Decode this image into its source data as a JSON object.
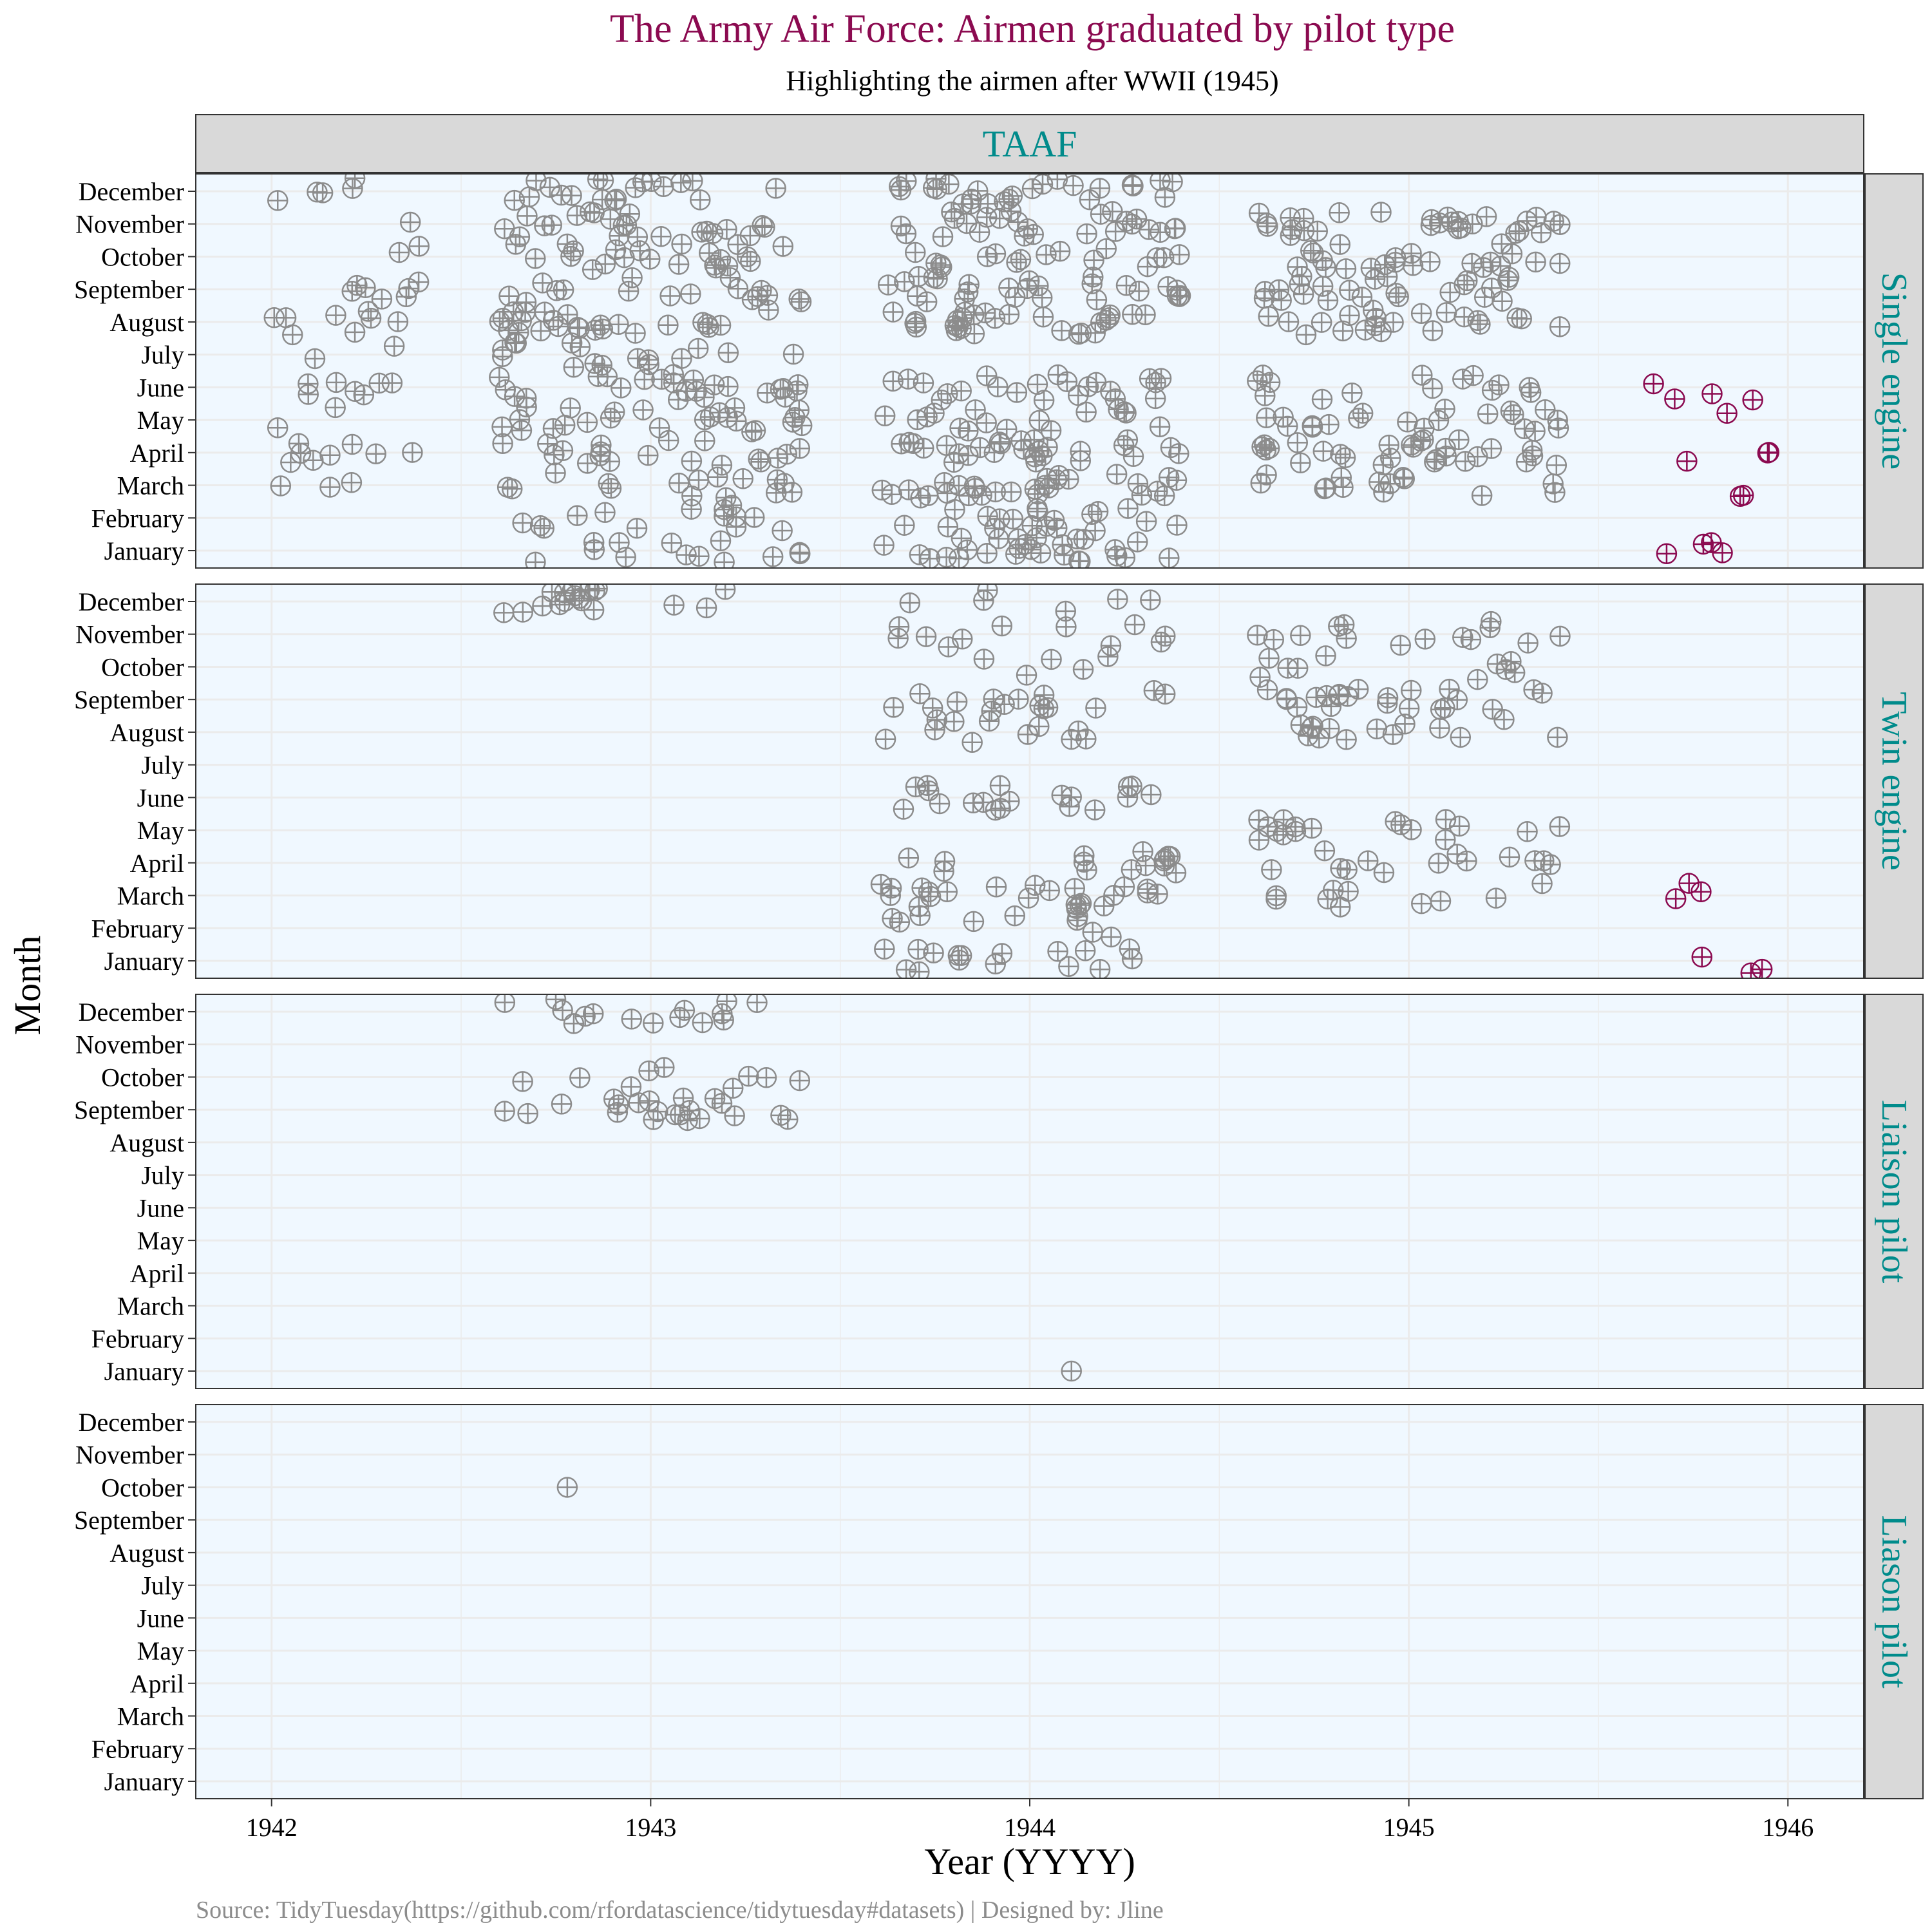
{
  "title": "The Army Air Force: Airmen graduated by pilot type",
  "subtitle": "Highlighting the airmen after WWII (1945)",
  "caption": "Source: TidyTuesday(https://github.com/rfordatascience/tidytuesday#datasets) | Designed by: Jline",
  "colors": {
    "title": "#8b0a50",
    "strip_text": "#008b8b",
    "panel_bg": "#f0f8ff",
    "strip_bg": "#d9d9d9",
    "grid": "#ebebeb",
    "point_default": "#8c8c8c",
    "point_highlight": "#8b0a50",
    "caption": "#8c8c8c"
  },
  "chart_data": {
    "type": "scatter",
    "marker": "circle-plus (jittered)",
    "xlabel": "Year (YYYY)",
    "ylabel": "Month",
    "xlim": [
      1941.8,
      1946.2
    ],
    "x_ticks": [
      "1942",
      "1943",
      "1944",
      "1945",
      "1946"
    ],
    "y_ticks": [
      "January",
      "February",
      "March",
      "April",
      "May",
      "June",
      "July",
      "August",
      "September",
      "October",
      "November",
      "December"
    ],
    "facet_column": "TAAF",
    "highlight_rule": "year > 1945",
    "grid": true,
    "panels": [
      {
        "label": "Single engine",
        "clusters": [
          {
            "x": [
              1942.0,
              1942.4
            ],
            "months": [
              3,
              4,
              5,
              6,
              7,
              8,
              9,
              10,
              11,
              12
            ],
            "n": 45
          },
          {
            "x": [
              1942.6,
              1943.4
            ],
            "months": [
              1,
              2,
              3,
              4,
              5,
              6,
              7,
              8,
              9,
              10,
              11,
              12
            ],
            "n": 230
          },
          {
            "x": [
              1943.6,
              1944.4
            ],
            "months": [
              1,
              2,
              3,
              4,
              5,
              6,
              8,
              9,
              10,
              11,
              12
            ],
            "n": 260
          },
          {
            "x": [
              1944.6,
              1945.4
            ],
            "months": [
              3,
              4,
              5,
              6,
              8,
              9,
              10,
              11
            ],
            "n": 170
          },
          {
            "x": [
              1945.6,
              1945.95
            ],
            "months": [
              1,
              2,
              3,
              4,
              5,
              6
            ],
            "n": 14
          }
        ]
      },
      {
        "label": "Twin engine",
        "clusters": [
          {
            "x": [
              1942.6,
              1943.2
            ],
            "months": [
              12
            ],
            "n": 18
          },
          {
            "x": [
              1943.6,
              1944.4
            ],
            "months": [
              1,
              2,
              3,
              4,
              6,
              8,
              9,
              10,
              11,
              12
            ],
            "n": 130
          },
          {
            "x": [
              1944.6,
              1945.4
            ],
            "months": [
              3,
              4,
              5,
              8,
              9,
              10,
              11
            ],
            "n": 100
          },
          {
            "x": [
              1945.7,
              1945.95
            ],
            "months": [
              1,
              3,
              5
            ],
            "n": 6
          }
        ]
      },
      {
        "label": "Liaison pilot",
        "clusters": [
          {
            "x": [
              1942.6,
              1943.4
            ],
            "months": [
              9,
              10,
              12
            ],
            "n": 45
          },
          {
            "x": [
              1944.11,
              1944.11
            ],
            "months": [
              1
            ],
            "n": 1
          }
        ]
      },
      {
        "label": "Liason pilot",
        "clusters": [
          {
            "x": [
              1942.78,
              1942.78
            ],
            "months": [
              10
            ],
            "n": 1
          }
        ]
      }
    ]
  }
}
